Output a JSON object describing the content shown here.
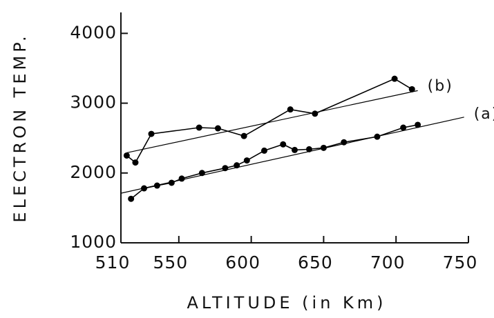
{
  "chart_data": {
    "type": "line",
    "xlabel": "ALTITUDE (in Km)",
    "ylabel": "ELECTRON TEMP.",
    "xlim": [
      510,
      750
    ],
    "xticks": [
      510,
      550,
      600,
      650,
      700,
      750
    ],
    "ylim": [
      1000,
      4300
    ],
    "yticks": [
      1000,
      2000,
      3000,
      4000
    ],
    "series": [
      {
        "name": "(b)",
        "color": "#000000",
        "x": [
          514,
          520,
          531,
          564,
          577,
          595,
          627,
          644,
          699,
          711
        ],
        "values": [
          2250,
          2150,
          2560,
          2650,
          2640,
          2530,
          2910,
          2850,
          3350,
          3200
        ],
        "fit": {
          "x": [
            514,
            715
          ],
          "values": [
            2290,
            3180
          ]
        }
      },
      {
        "name": "(a)",
        "color": "#000000",
        "x": [
          517,
          526,
          535,
          545,
          552,
          566,
          582,
          590,
          597,
          609,
          622,
          630,
          640,
          650,
          664,
          687,
          705,
          715
        ],
        "values": [
          1630,
          1780,
          1820,
          1860,
          1920,
          2000,
          2070,
          2110,
          2180,
          2320,
          2410,
          2330,
          2340,
          2360,
          2440,
          2520,
          2650,
          2690
        ],
        "fit": {
          "x": [
            510,
            747
          ],
          "values": [
            1710,
            2800
          ]
        }
      }
    ]
  }
}
